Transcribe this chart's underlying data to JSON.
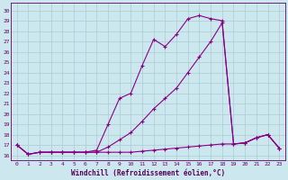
{
  "xlabel": "Windchill (Refroidissement éolien,°C)",
  "bg_color": "#cce8ee",
  "grid_color": "#aaccd4",
  "line_color": "#880088",
  "x_ticks": [
    0,
    1,
    2,
    3,
    4,
    5,
    6,
    7,
    8,
    9,
    10,
    11,
    12,
    13,
    14,
    15,
    16,
    17,
    18,
    19,
    20,
    21,
    22,
    23
  ],
  "y_ticks": [
    16,
    17,
    18,
    19,
    20,
    21,
    22,
    23,
    24,
    25,
    26,
    27,
    28,
    29,
    30
  ],
  "ylim": [
    15.5,
    30.7
  ],
  "xlim": [
    -0.5,
    23.5
  ],
  "line1_x": [
    0,
    1,
    2,
    3,
    4,
    5,
    6,
    7,
    8,
    9,
    10,
    11,
    12,
    13,
    14,
    15,
    16,
    17,
    18,
    19,
    20,
    21,
    22,
    23
  ],
  "line1_y": [
    17.0,
    16.1,
    16.3,
    16.3,
    16.3,
    16.3,
    16.3,
    16.5,
    19.0,
    21.5,
    22.0,
    24.7,
    27.2,
    26.5,
    27.7,
    29.2,
    29.5,
    29.2,
    29.0,
    17.1,
    17.2,
    17.7,
    18.0,
    16.7
  ],
  "line2_x": [
    0,
    1,
    2,
    3,
    4,
    5,
    6,
    7,
    8,
    9,
    10,
    11,
    12,
    13,
    14,
    15,
    16,
    17,
    18,
    19,
    20,
    21,
    22,
    23
  ],
  "line2_y": [
    17.0,
    16.1,
    16.3,
    16.3,
    16.3,
    16.3,
    16.3,
    16.3,
    16.8,
    17.5,
    18.2,
    19.3,
    20.5,
    21.5,
    22.5,
    24.0,
    25.5,
    27.0,
    28.8,
    17.1,
    17.2,
    17.7,
    18.0,
    16.7
  ],
  "line3_x": [
    0,
    1,
    2,
    3,
    4,
    5,
    6,
    7,
    8,
    9,
    10,
    11,
    12,
    13,
    14,
    15,
    16,
    17,
    18,
    19,
    20,
    21,
    22,
    23
  ],
  "line3_y": [
    17.0,
    16.1,
    16.3,
    16.3,
    16.3,
    16.3,
    16.3,
    16.3,
    16.3,
    16.3,
    16.3,
    16.4,
    16.5,
    16.6,
    16.7,
    16.8,
    16.9,
    17.0,
    17.1,
    17.1,
    17.2,
    17.7,
    18.0,
    16.7
  ]
}
